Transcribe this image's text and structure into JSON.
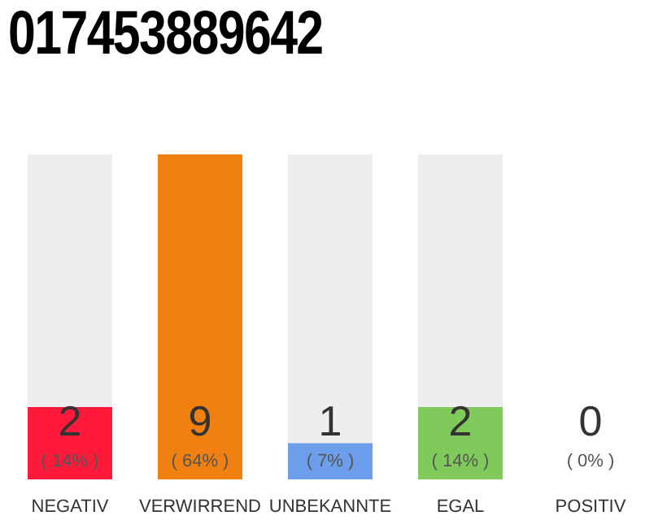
{
  "chart_data": {
    "type": "bar",
    "title": "017453889642",
    "categories": [
      "NEGATIV",
      "VERWIRREND",
      "UNBEKANNTE",
      "EGAL",
      "POSITIV"
    ],
    "values": [
      2,
      9,
      1,
      2,
      0
    ],
    "colors": [
      "#ff1a3c",
      "#f0800f",
      "#6d9eeb",
      "#80c95b",
      "#cccccc"
    ],
    "data_labels": true,
    "annotations": [
      "( 14% )",
      "( 64% )",
      "( 7% )",
      "( 14% )",
      "( 0% )"
    ]
  }
}
